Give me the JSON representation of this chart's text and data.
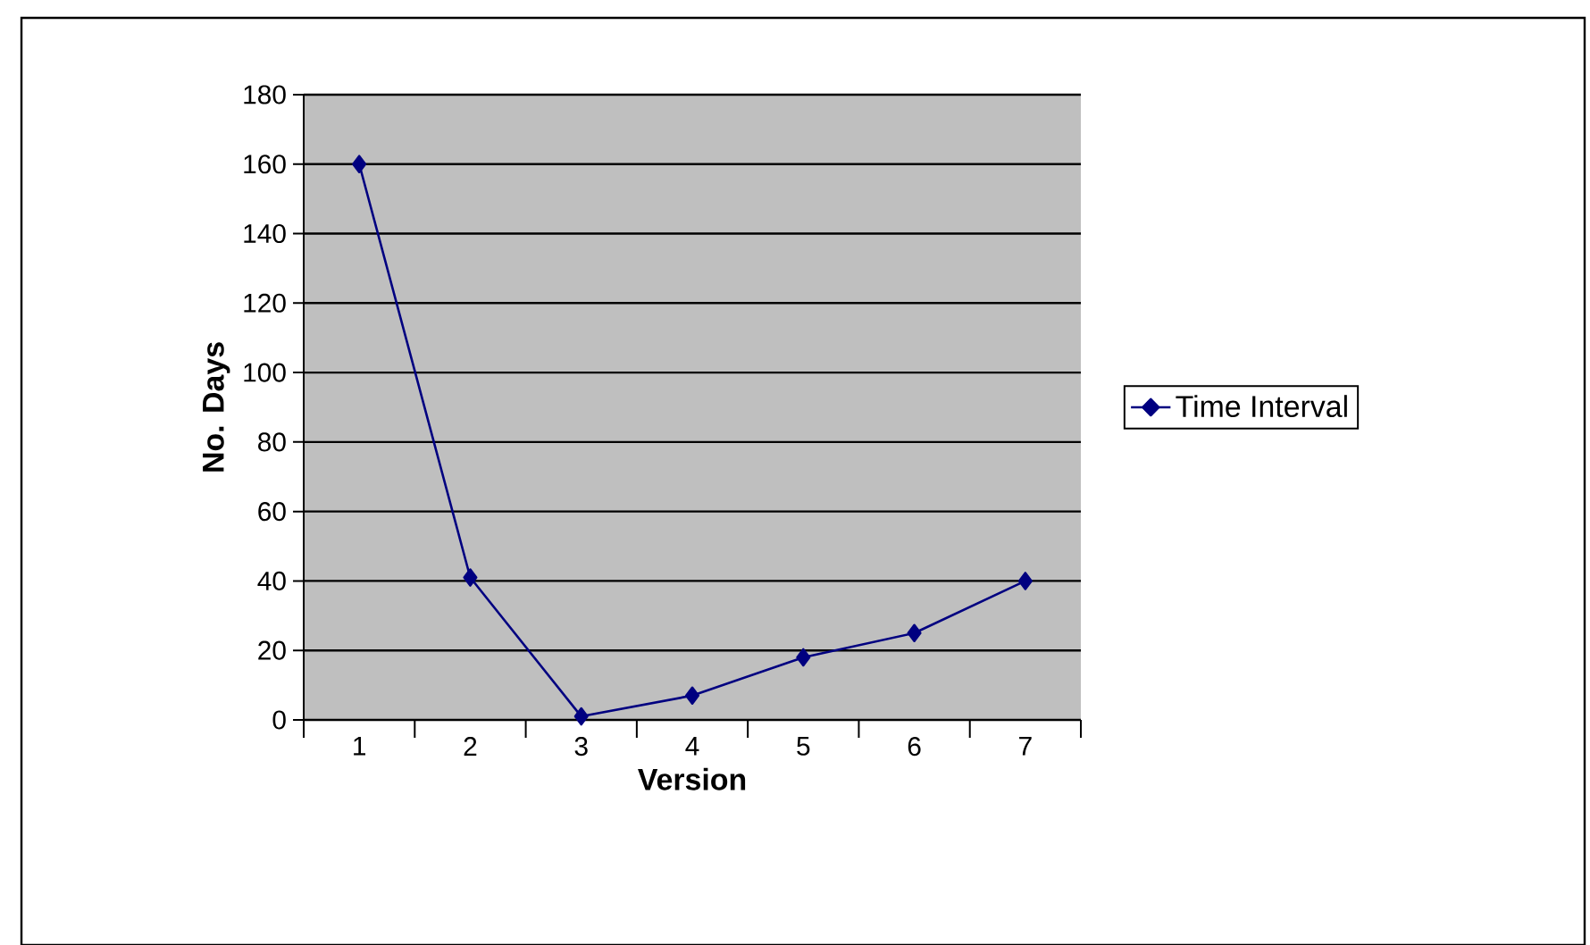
{
  "chart_data": {
    "type": "line",
    "xlabel": "Version",
    "ylabel": "No. Days",
    "categories": [
      "1",
      "2",
      "3",
      "4",
      "5",
      "6",
      "7"
    ],
    "series": [
      {
        "name": "Time Interval",
        "color": "#000080",
        "values": [
          160,
          41,
          1,
          7,
          18,
          25,
          40
        ]
      }
    ],
    "ylim": [
      0,
      180
    ],
    "yticks": [
      0,
      20,
      40,
      60,
      80,
      100,
      120,
      140,
      160,
      180
    ],
    "grid": "y",
    "legend": "right",
    "marker": "diamond",
    "line_style": "solid"
  }
}
